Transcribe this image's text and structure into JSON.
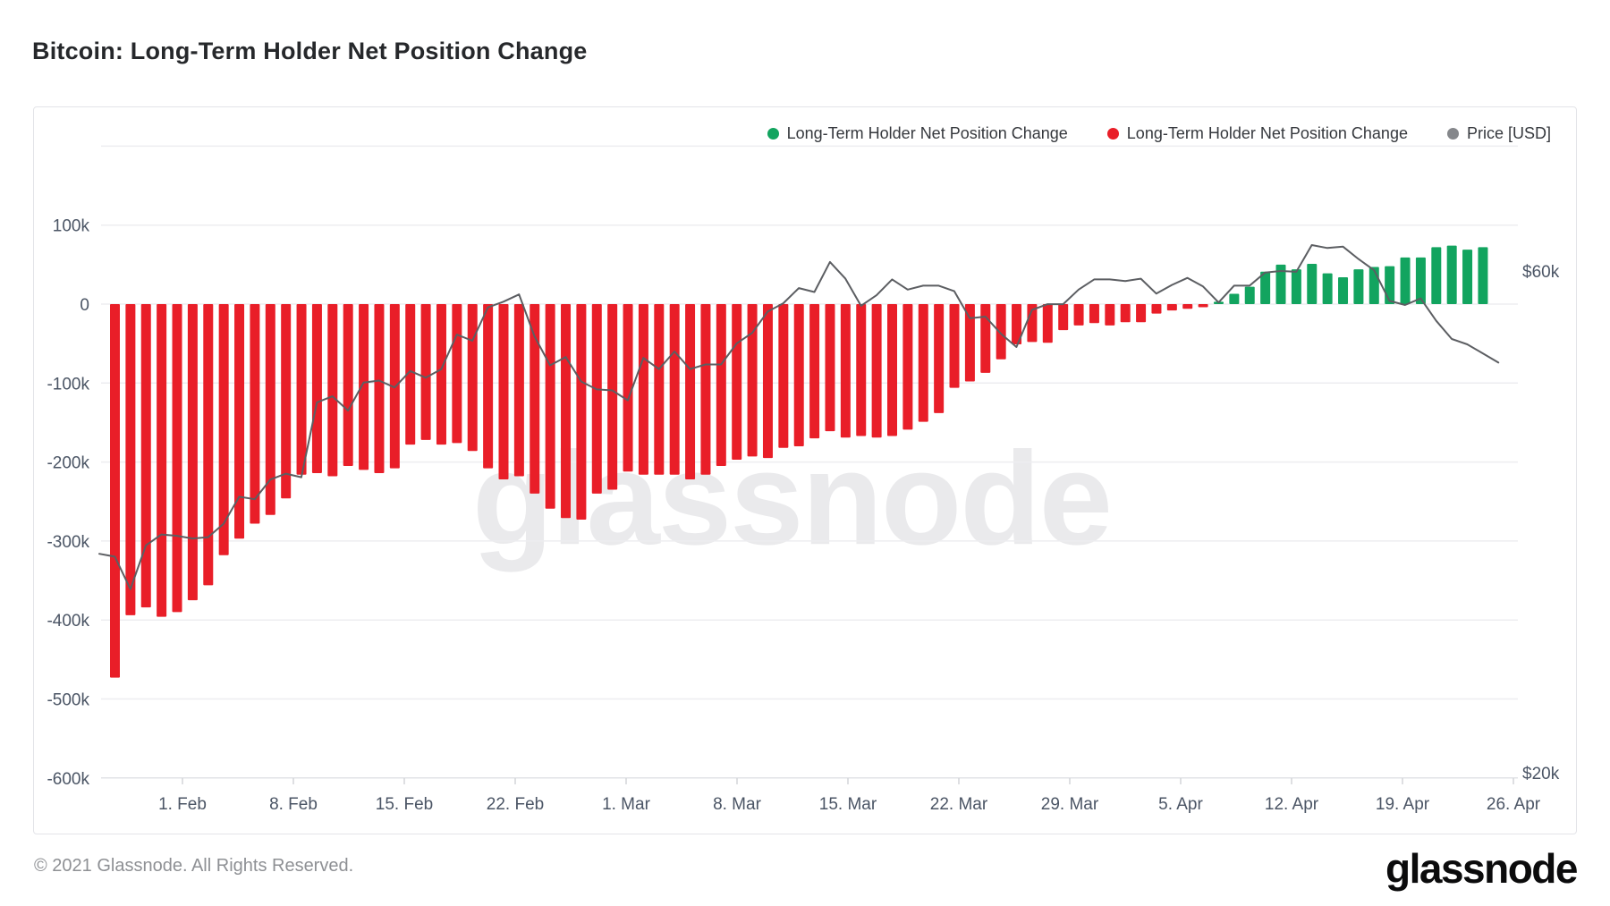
{
  "page": {
    "title": "Bitcoin: Long-Term Holder Net Position Change"
  },
  "legend": [
    {
      "label": "Long-Term Holder Net Position Change",
      "color": "#12a45f"
    },
    {
      "label": "Long-Term Holder Net Position Change",
      "color": "#e91e28"
    },
    {
      "label": "Price [USD]",
      "color": "#85878b"
    }
  ],
  "watermark": "glassnode",
  "footer": {
    "copyright": "© 2021 Glassnode. All Rights Reserved.",
    "brand": "glassnode"
  },
  "chart_data": {
    "type": "bar+line",
    "title": "Bitcoin: Long-Term Holder Net Position Change",
    "grid": true,
    "legend_position": "top-right",
    "y_axis": {
      "side": "left",
      "tick_labels": [
        "100k",
        "0",
        "-100k",
        "-200k",
        "-300k",
        "-400k",
        "-500k",
        "-600k"
      ],
      "tick_values": [
        100000,
        0,
        -100000,
        -200000,
        -300000,
        -400000,
        -500000,
        -600000
      ],
      "range": [
        -600000,
        130000
      ]
    },
    "price_axis": {
      "side": "right",
      "scale": "log",
      "tick_labels": [
        "$60k",
        "$20k"
      ],
      "tick_values": [
        60000,
        20000
      ]
    },
    "x_axis": {
      "tick_labels": [
        "1. Feb",
        "8. Feb",
        "15. Feb",
        "22. Feb",
        "1. Mar",
        "8. Mar",
        "15. Mar",
        "22. Mar",
        "29. Mar",
        "5. Apr",
        "12. Apr",
        "19. Apr",
        "26. Apr"
      ],
      "interval": "weekly"
    },
    "bars": {
      "name": "Long-Term Holder Net Position Change",
      "unit": "BTC (thousands)",
      "daily_from": "2021-01-26",
      "daily_to": "2021-04-24",
      "positive_color": "#12a45f",
      "negative_color": "#e91e28",
      "values_k": [
        -473,
        -394,
        -384,
        -396,
        -390,
        -375,
        -356,
        -318,
        -297,
        -278,
        -267,
        -246,
        -216,
        -214,
        -218,
        -205,
        -210,
        -214,
        -208,
        -178,
        -172,
        -178,
        -176,
        -186,
        -208,
        -222,
        -218,
        -240,
        -259,
        -271,
        -273,
        -240,
        -235,
        -212,
        -216,
        -216,
        -216,
        -222,
        -216,
        -205,
        -197,
        -193,
        -195,
        -182,
        -180,
        -170,
        -161,
        -169,
        -167,
        -169,
        -167,
        -159,
        -149,
        -138,
        -106,
        -98,
        -87,
        -70,
        -51,
        -48,
        -49,
        -33,
        -27,
        -24,
        -27,
        -23,
        -23,
        -12,
        -8,
        -6,
        -4,
        3,
        13,
        22,
        41,
        50,
        44,
        51,
        39,
        34,
        44,
        47,
        48,
        59,
        59,
        72,
        74,
        69,
        72
      ]
    },
    "price": {
      "name": "Price [USD]",
      "unit": "USD (thousands)",
      "daily_from": "2021-01-25",
      "daily_to": "2021-04-25",
      "color": "#5c5e62",
      "values_usd_k": [
        32.3,
        32.1,
        29.9,
        32.9,
        33.7,
        33.6,
        33.4,
        33.5,
        34.5,
        36.6,
        36.4,
        38.0,
        38.5,
        38.2,
        45.0,
        45.6,
        44.2,
        47.0,
        47.2,
        46.5,
        48.2,
        47.5,
        48.4,
        52.2,
        51.5,
        55.4,
        56.1,
        57.0,
        52.0,
        48.8,
        49.7,
        47.1,
        46.3,
        46.2,
        45.2,
        49.6,
        48.4,
        50.3,
        48.4,
        48.9,
        48.9,
        51.2,
        52.4,
        54.9,
        55.9,
        57.8,
        57.3,
        61.2,
        59.0,
        55.6,
        56.9,
        58.9,
        57.6,
        58.1,
        58.1,
        57.4,
        54.1,
        54.3,
        52.3,
        50.8,
        55.1,
        55.8,
        55.8,
        57.6,
        58.9,
        58.9,
        58.7,
        59.0,
        57.1,
        58.2,
        59.1,
        58.0,
        56.0,
        58.1,
        58.1,
        59.8,
        60.0,
        59.9,
        63.5,
        63.1,
        63.3,
        61.6,
        60.1,
        56.2,
        55.7,
        56.5,
        53.8,
        51.7,
        51.1,
        50.1,
        49.1
      ]
    }
  }
}
